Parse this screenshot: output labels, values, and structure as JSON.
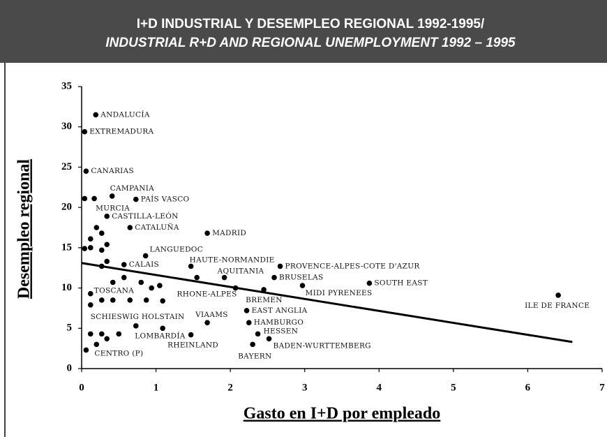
{
  "chart_data": {
    "type": "scatter",
    "title": "I+D INDUSTRIAL Y DESEMPLEO REGIONAL 1992-1995/",
    "subtitle": "INDUSTRIAL R+D AND REGIONAL UNEMPLOYMENT 1992 – 1995",
    "x_label": "Gasto en I+D por empleado",
    "y_label": "Desempleo regional",
    "xlim": [
      0,
      7
    ],
    "ylim": [
      0,
      35
    ],
    "xticks": [
      0,
      1,
      2,
      3,
      4,
      5,
      6,
      7
    ],
    "yticks": [
      0,
      5,
      10,
      15,
      20,
      25,
      30,
      35
    ],
    "color": "#000000",
    "x": [
      0.19,
      0.04,
      0.06,
      0.41,
      0.73,
      0.17,
      0.04,
      0.34,
      0.65,
      1.69,
      0.2,
      0.27,
      0.12,
      0.34,
      0.04,
      0.12,
      0.27,
      0.86,
      0.34,
      0.27,
      0.57,
      1.47,
      2.67,
      1.92,
      2.59,
      1.55,
      2.97,
      3.87,
      6.41,
      0.42,
      0.57,
      0.8,
      0.94,
      1.05,
      0.12,
      0.27,
      0.42,
      0.65,
      0.87,
      1.09,
      2.07,
      2.45,
      0.12,
      2.22,
      2.25,
      1.69,
      0.73,
      1.09,
      2.37,
      2.52,
      2.3,
      1.47,
      0.12,
      0.27,
      0.5,
      0.34,
      0.2,
      0.06
    ],
    "y": [
      31.5,
      29.4,
      24.5,
      21.4,
      21.0,
      21.1,
      21.1,
      18.9,
      17.5,
      16.8,
      17.5,
      16.8,
      16.1,
      15.4,
      14.9,
      15.0,
      14.7,
      14.0,
      13.3,
      12.7,
      12.9,
      12.7,
      12.7,
      11.3,
      11.3,
      11.3,
      10.3,
      10.6,
      9.1,
      10.7,
      11.3,
      10.7,
      10.0,
      10.3,
      9.3,
      8.5,
      8.5,
      8.5,
      8.5,
      8.4,
      10.0,
      9.8,
      7.9,
      7.2,
      5.7,
      5.7,
      5.3,
      5.0,
      4.3,
      3.7,
      3.0,
      4.2,
      4.3,
      4.3,
      4.3,
      3.7,
      3.0,
      2.3
    ],
    "labels": [
      "ANDALUCÍA",
      "EXTREMADURA",
      "CANARIAS",
      "CAMPANIA",
      "PAÍS VASCO",
      "MURCIA",
      null,
      "CASTILLA-LEÓN",
      "CATALUÑA",
      "MADRID",
      null,
      null,
      null,
      null,
      null,
      null,
      null,
      "LANGUEDOC",
      null,
      null,
      "CALAIS",
      "HAUTE-NORMANDIE",
      "PROVENCE-ALPES-COTE D'AZUR",
      "AQUITANIA",
      "BRUSELAS",
      null,
      "MIDI PYRENEES",
      "SOUTH EAST",
      "ILE DE FRANCE",
      null,
      null,
      null,
      null,
      null,
      "TOSCANA",
      null,
      null,
      null,
      null,
      null,
      "RHONE-ALPES",
      "BREMEN",
      "SCHIESWIG HOLSTAIN",
      "EAST ANGLIA",
      "HAMBURGO",
      "VIAAMS",
      null,
      "RHEINLAND",
      "HESSEN",
      "BADEN-WURTTEMBERG",
      "BAYERN",
      "LOMBARDÍA",
      null,
      null,
      null,
      null,
      null,
      "CENTRO (P)"
    ],
    "trendline": {
      "x": [
        0,
        6.6
      ],
      "y": [
        13.1,
        3.3
      ]
    }
  }
}
